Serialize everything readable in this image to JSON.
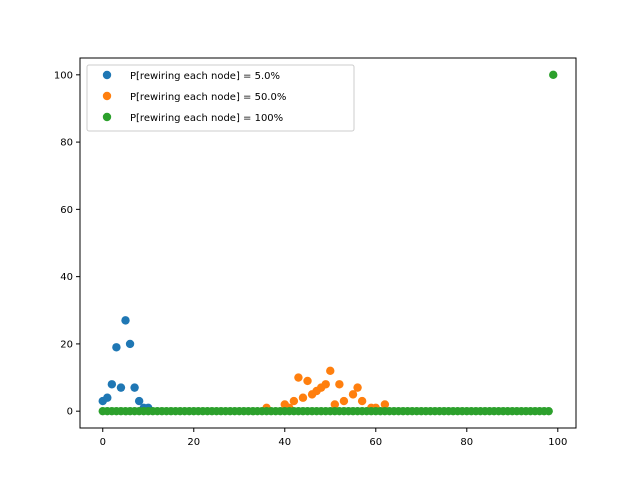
{
  "chart_data": {
    "type": "scatter",
    "title": "",
    "xlabel": "",
    "ylabel": "",
    "xlim": [
      -5,
      104
    ],
    "ylim": [
      -5,
      105
    ],
    "xticks": [
      0,
      20,
      40,
      60,
      80,
      100
    ],
    "yticks": [
      0,
      20,
      40,
      60,
      80,
      100
    ],
    "grid": false,
    "legend_position": "top-left",
    "series": [
      {
        "name": "P[rewiring each node] = 5.0%",
        "color": "#1f77b4",
        "x": [
          0,
          1,
          2,
          3,
          4,
          5,
          6,
          7,
          8,
          9,
          10
        ],
        "y": [
          3,
          4,
          8,
          19,
          7,
          27,
          20,
          7,
          3,
          1,
          1
        ]
      },
      {
        "name": "P[rewiring each node] = 50.0%",
        "color": "#ff7f0e",
        "x": [
          36,
          40,
          41,
          42,
          43,
          44,
          45,
          46,
          47,
          48,
          49,
          50,
          51,
          52,
          53,
          55,
          56,
          57,
          59,
          60,
          62
        ],
        "y": [
          1,
          2,
          1,
          3,
          10,
          4,
          9,
          5,
          6,
          7,
          8,
          12,
          2,
          8,
          3,
          5,
          7,
          3,
          1,
          1,
          2
        ]
      },
      {
        "name": "P[rewiring each node] = 100%",
        "color": "#2ca02c",
        "x_range": [
          0,
          98
        ],
        "y_value": 0,
        "x": [
          99
        ],
        "y": [
          100
        ]
      }
    ]
  }
}
